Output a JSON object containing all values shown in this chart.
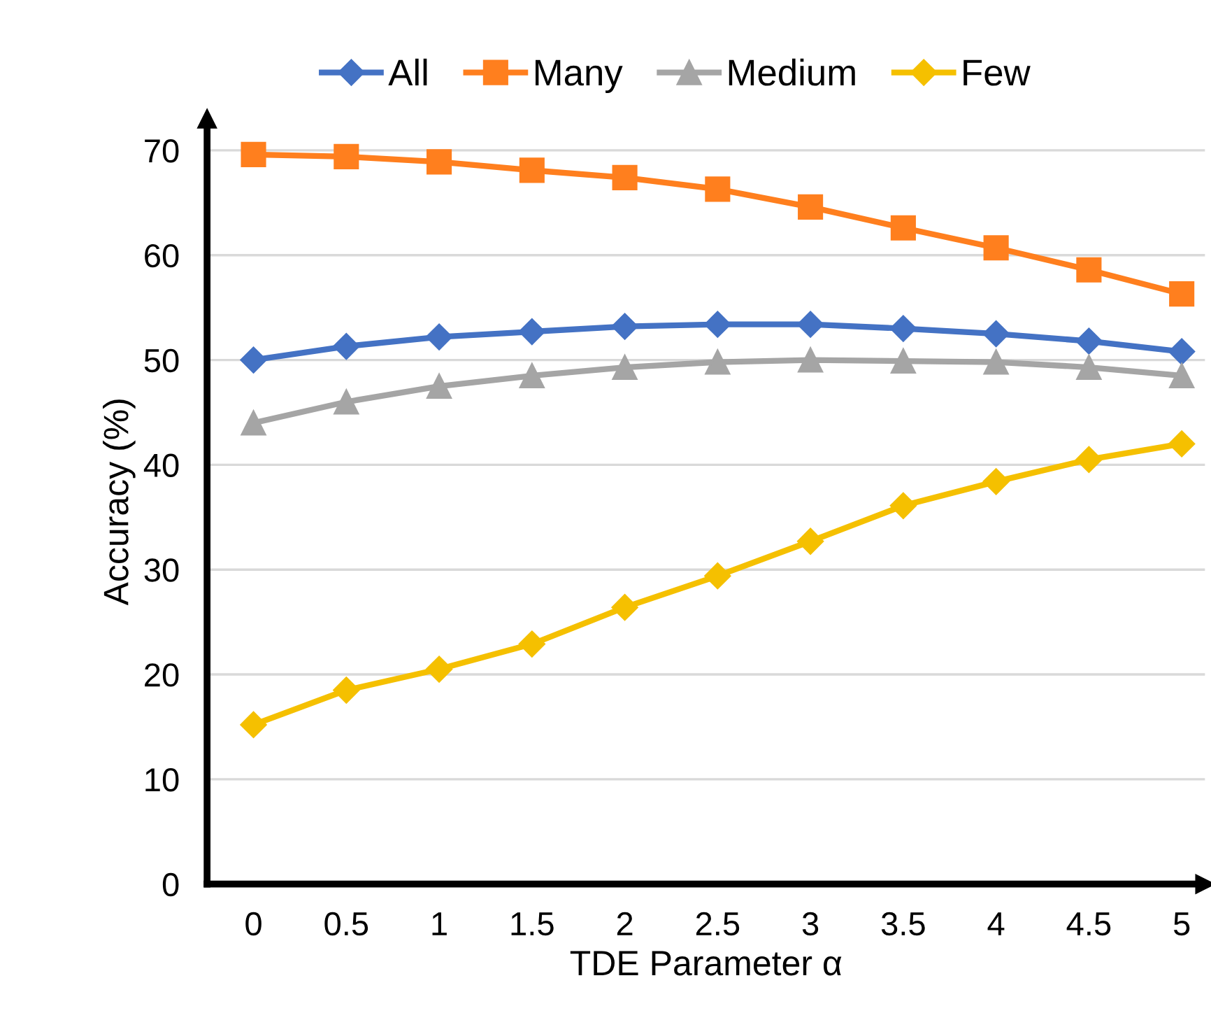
{
  "chart_data": {
    "type": "line",
    "xlabel": "TDE Parameter α",
    "ylabel": "Accuracy (%)",
    "categories": [
      "0",
      "0.5",
      "1",
      "1.5",
      "2",
      "2.5",
      "3",
      "3.5",
      "4",
      "4.5",
      "5"
    ],
    "series": [
      {
        "name": "All",
        "color": "#4472c4",
        "marker": "diamond",
        "values": [
          50.0,
          51.3,
          52.2,
          52.7,
          53.2,
          53.4,
          53.4,
          53.0,
          52.5,
          51.8,
          50.8
        ]
      },
      {
        "name": "Many",
        "color": "#ff7f1e",
        "marker": "square",
        "values": [
          69.6,
          69.4,
          68.9,
          68.1,
          67.4,
          66.3,
          64.6,
          62.6,
          60.7,
          58.6,
          56.3
        ]
      },
      {
        "name": "Medium",
        "color": "#a5a5a5",
        "marker": "triangle",
        "values": [
          44.0,
          46.0,
          47.5,
          48.5,
          49.3,
          49.8,
          50.0,
          49.9,
          49.8,
          49.3,
          48.5
        ]
      },
      {
        "name": "Few",
        "color": "#f5c000",
        "marker": "diamond",
        "values": [
          15.2,
          18.5,
          20.5,
          22.9,
          26.4,
          29.4,
          32.7,
          36.1,
          38.4,
          40.5,
          42.0
        ]
      }
    ],
    "ylim": [
      0,
      73
    ],
    "yticks": [
      0,
      10,
      20,
      30,
      40,
      50,
      60,
      70
    ],
    "grid": "y",
    "legend": "top",
    "line_style": "solid"
  }
}
